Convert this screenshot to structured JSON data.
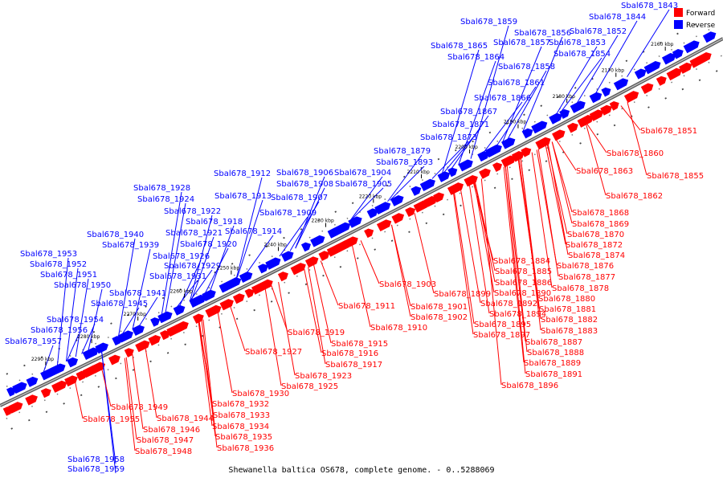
{
  "legend": {
    "forward_label": "Forward",
    "reverse_label": "Reverse",
    "forward_color": "#ff0000",
    "reverse_color": "#0000ff"
  },
  "caption": "Shewanella baltica OS678, complete genome. - 0..5288069",
  "ticks": [
    "2160 kbp",
    "2170 kbp",
    "2180 kbp",
    "2190 kbp",
    "2200 kbp",
    "2210 kbp",
    "2220 kbp",
    "2230 kbp",
    "2240 kbp",
    "2250 kbp",
    "2260 kbp",
    "2270 kbp",
    "2280 kbp",
    "2290 kbp"
  ],
  "reverse_genes": [
    "Sbal678_1843",
    "Sbal678_1844",
    "Sbal678_1852",
    "Sbal678_1853",
    "Sbal678_1854",
    "Sbal678_1856",
    "Sbal678_1857",
    "Sbal678_1859",
    "Sbal678_1865",
    "Sbal678_1864",
    "Sbal678_1858",
    "Sbal678_1861",
    "Sbal678_1866",
    "Sbal678_1867",
    "Sbal678_1871",
    "Sbal678_1873",
    "Sbal678_1879",
    "Sbal678_1893",
    "Sbal678_1904",
    "Sbal678_1905",
    "Sbal678_1906",
    "Sbal678_1908",
    "Sbal678_1907",
    "Sbal678_1912",
    "Sbal678_1913",
    "Sbal678_1909",
    "Sbal678_1928",
    "Sbal678_1924",
    "Sbal678_1922",
    "Sbal678_1918",
    "Sbal678_1921",
    "Sbal678_1914",
    "Sbal678_1920",
    "Sbal678_1940",
    "Sbal678_1939",
    "Sbal678_1926",
    "Sbal678_1929",
    "Sbal678_1953",
    "Sbal678_1952",
    "Sbal678_1931",
    "Sbal678_1951",
    "Sbal678_1950",
    "Sbal678_1941",
    "Sbal678_1945",
    "Sbal678_1954",
    "Sbal678_1956",
    "Sbal678_1957",
    "Sbal678_1958",
    "Sbal678_1959"
  ],
  "forward_genes": [
    "Sbal678_1851",
    "Sbal678_1860",
    "Sbal678_1855",
    "Sbal678_1863",
    "Sbal678_1862",
    "Sbal678_1868",
    "Sbal678_1869",
    "Sbal678_1870",
    "Sbal678_1872",
    "Sbal678_1874",
    "Sbal678_1884",
    "Sbal678_1876",
    "Sbal678_1885",
    "Sbal678_1877",
    "Sbal678_1886",
    "Sbal678_1878",
    "Sbal678_1890",
    "Sbal678_1880",
    "Sbal678_1903",
    "Sbal678_1892",
    "Sbal678_1881",
    "Sbal678_1899",
    "Sbal678_1894",
    "Sbal678_1882",
    "Sbal678_1901",
    "Sbal678_1895",
    "Sbal678_1883",
    "Sbal678_1911",
    "Sbal678_1902",
    "Sbal678_1897",
    "Sbal678_1887",
    "Sbal678_1910",
    "Sbal678_1888",
    "Sbal678_1889",
    "Sbal678_1891",
    "Sbal678_1896",
    "Sbal678_1919",
    "Sbal678_1915",
    "Sbal678_1916",
    "Sbal678_1927",
    "Sbal678_1917",
    "Sbal678_1923",
    "Sbal678_1925",
    "Sbal678_1930",
    "Sbal678_1932",
    "Sbal678_1949",
    "Sbal678_1933",
    "Sbal678_1955",
    "Sbal678_1944",
    "Sbal678_1934",
    "Sbal678_1946",
    "Sbal678_1935",
    "Sbal678_1947",
    "Sbal678_1936",
    "Sbal678_1948"
  ]
}
